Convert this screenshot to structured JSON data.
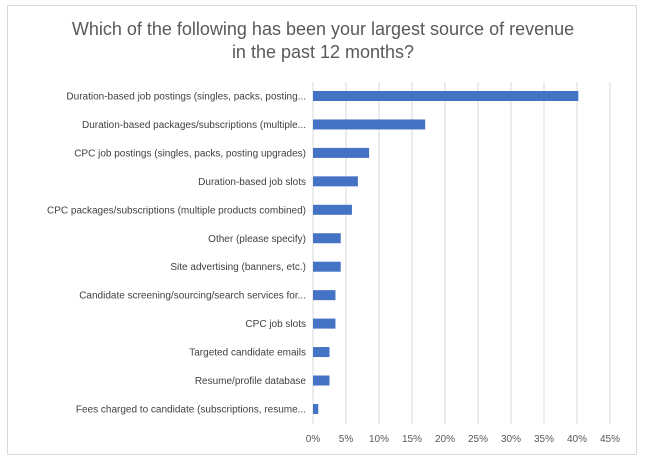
{
  "chart_data": {
    "type": "bar",
    "orientation": "horizontal",
    "title_lines": [
      "Which of the following has been your largest source of revenue",
      "in the past 12 months?"
    ],
    "categories": [
      "Duration-based job postings (singles, packs, posting...",
      "Duration-based packages/subscriptions (multiple...",
      "CPC job postings (singles, packs, posting upgrades)",
      "Duration-based job slots",
      "CPC packages/subscriptions (multiple products combined)",
      "Other (please specify)",
      "Site advertising (banners, etc.)",
      "Candidate screening/sourcing/search services for...",
      "CPC job slots",
      "Targeted candidate emails",
      "Resume/profile database",
      "Fees charged to candidate (subscriptions, resume..."
    ],
    "values": [
      40.2,
      17.0,
      8.5,
      6.8,
      5.9,
      4.2,
      4.2,
      3.4,
      3.4,
      2.5,
      2.5,
      0.8
    ],
    "xlim": [
      0,
      45
    ],
    "ticks": [
      0,
      5,
      10,
      15,
      20,
      25,
      30,
      35,
      40,
      45
    ],
    "tick_labels": [
      "0%",
      "5%",
      "10%",
      "15%",
      "20%",
      "25%",
      "30%",
      "35%",
      "40%",
      "45%"
    ],
    "grid": true,
    "bar_color": "#4472c4",
    "grid_color": "#d9d9d9"
  }
}
